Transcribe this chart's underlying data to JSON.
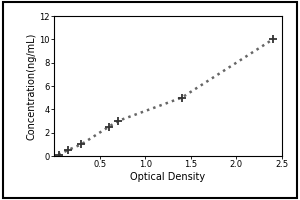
{
  "x_data": [
    0.05,
    0.15,
    0.3,
    0.6,
    0.7,
    1.4,
    2.4
  ],
  "y_data": [
    0.1,
    0.5,
    1.0,
    2.5,
    3.0,
    5.0,
    10.0
  ],
  "xlabel": "Optical Density",
  "ylabel": "Concentration(ng/mL)",
  "xlim": [
    0,
    2.5
  ],
  "ylim": [
    0,
    12
  ],
  "xticks": [
    0.5,
    1.0,
    1.5,
    2.0,
    2.5
  ],
  "yticks": [
    0,
    2,
    4,
    6,
    8,
    10,
    12
  ],
  "line_color": "#666666",
  "marker": "+",
  "marker_size": 6,
  "marker_color": "#333333",
  "linestyle": "dotted",
  "linewidth": 1.8,
  "background_color": "#ffffff",
  "outer_bg": "#e8e8e8",
  "font_size_label": 7,
  "font_size_tick": 6,
  "border_color": "#000000"
}
